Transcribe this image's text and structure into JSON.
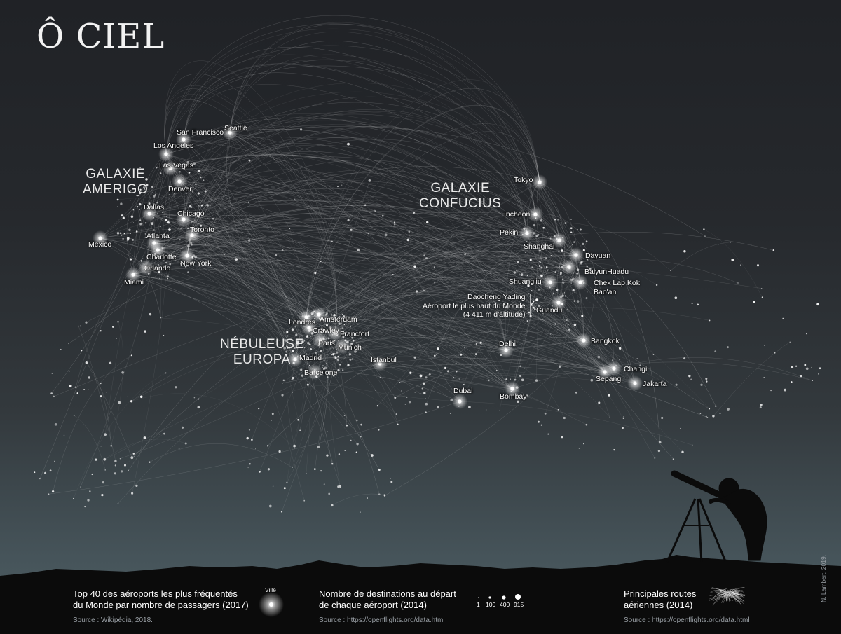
{
  "title": "Ô CIEL",
  "regions": {
    "amerigo": [
      "GALAXIE",
      "AMERIGO"
    ],
    "confucius": [
      "GALAXIE",
      "CONFUCIUS"
    ],
    "europa": [
      "NÉBULEUSE",
      "EUROPA"
    ]
  },
  "cities": {
    "san_francisco": "San Francisco",
    "seattle": "Seattle",
    "los_angeles": "Los Angeles",
    "las_vegas": "Las Vegas",
    "denver": "Denver,",
    "dallas": "Dallas",
    "chicago": "Chicago",
    "toronto": "Toronto",
    "atlanta": "Atlanta",
    "mexico": "Mexico",
    "charlotte": "Charlotte",
    "orlando": "Orlando",
    "new_york": "New York",
    "miami": "Miami",
    "tokyo": "Tokyo",
    "incheon": "Incheon",
    "pekin": "Pékin",
    "shanghai": "Shanghai",
    "dayuan": "Dayuan",
    "baiyun_huadu": "BaiyunHuadu",
    "shuangliu": "Shuangliu",
    "chek_lap_kok": "Chek Lap Kok",
    "baoan": "Bao'an",
    "daocheng_yading": "Daocheng Yading",
    "guandu": "Guandu",
    "londres": "Londres",
    "amsterdam": "Amsterdam",
    "crawley": "Crawley",
    "francfort": "Francfort",
    "paris": "Paris",
    "munich": "Munich",
    "madrid": "Madrid",
    "istanbul": "Istanbul",
    "barcelone": "Barcelone",
    "delhi": "Delhi",
    "bangkok": "Bangkok",
    "changi": "Changi",
    "sepang": "Sepang",
    "jakarta": "Jakarta",
    "dubai": "Dubai",
    "bombay": "Bombay"
  },
  "annotation": [
    "Aéroport le plus haut du Monde",
    "(4 411 m d'altitude)"
  ],
  "legend": {
    "top40": {
      "text": [
        "Top 40 des aéroports les plus fréquentés",
        "du Monde par nombre de passagers (2017)"
      ],
      "symbol_label": "Ville",
      "source": "Source : Wikipédia, 2018."
    },
    "destinations": {
      "text": [
        "Nombre de destinations au départ",
        "de chaque aéroport (2014)"
      ],
      "scale": [
        "1",
        "100",
        "400",
        "915"
      ],
      "source": "Source : https://openflights.org/data.html"
    },
    "routes": {
      "text": [
        "Principales routes",
        "aériennes (2014)"
      ],
      "source": "Source : https://openflights.org/data.html"
    }
  },
  "credit": "N. Lambert, 2019.",
  "colors": {
    "sky_top": "#202226",
    "sky_bottom": "#4f5e63",
    "glow": "#ffffff",
    "ground": "#0b0b0b"
  }
}
